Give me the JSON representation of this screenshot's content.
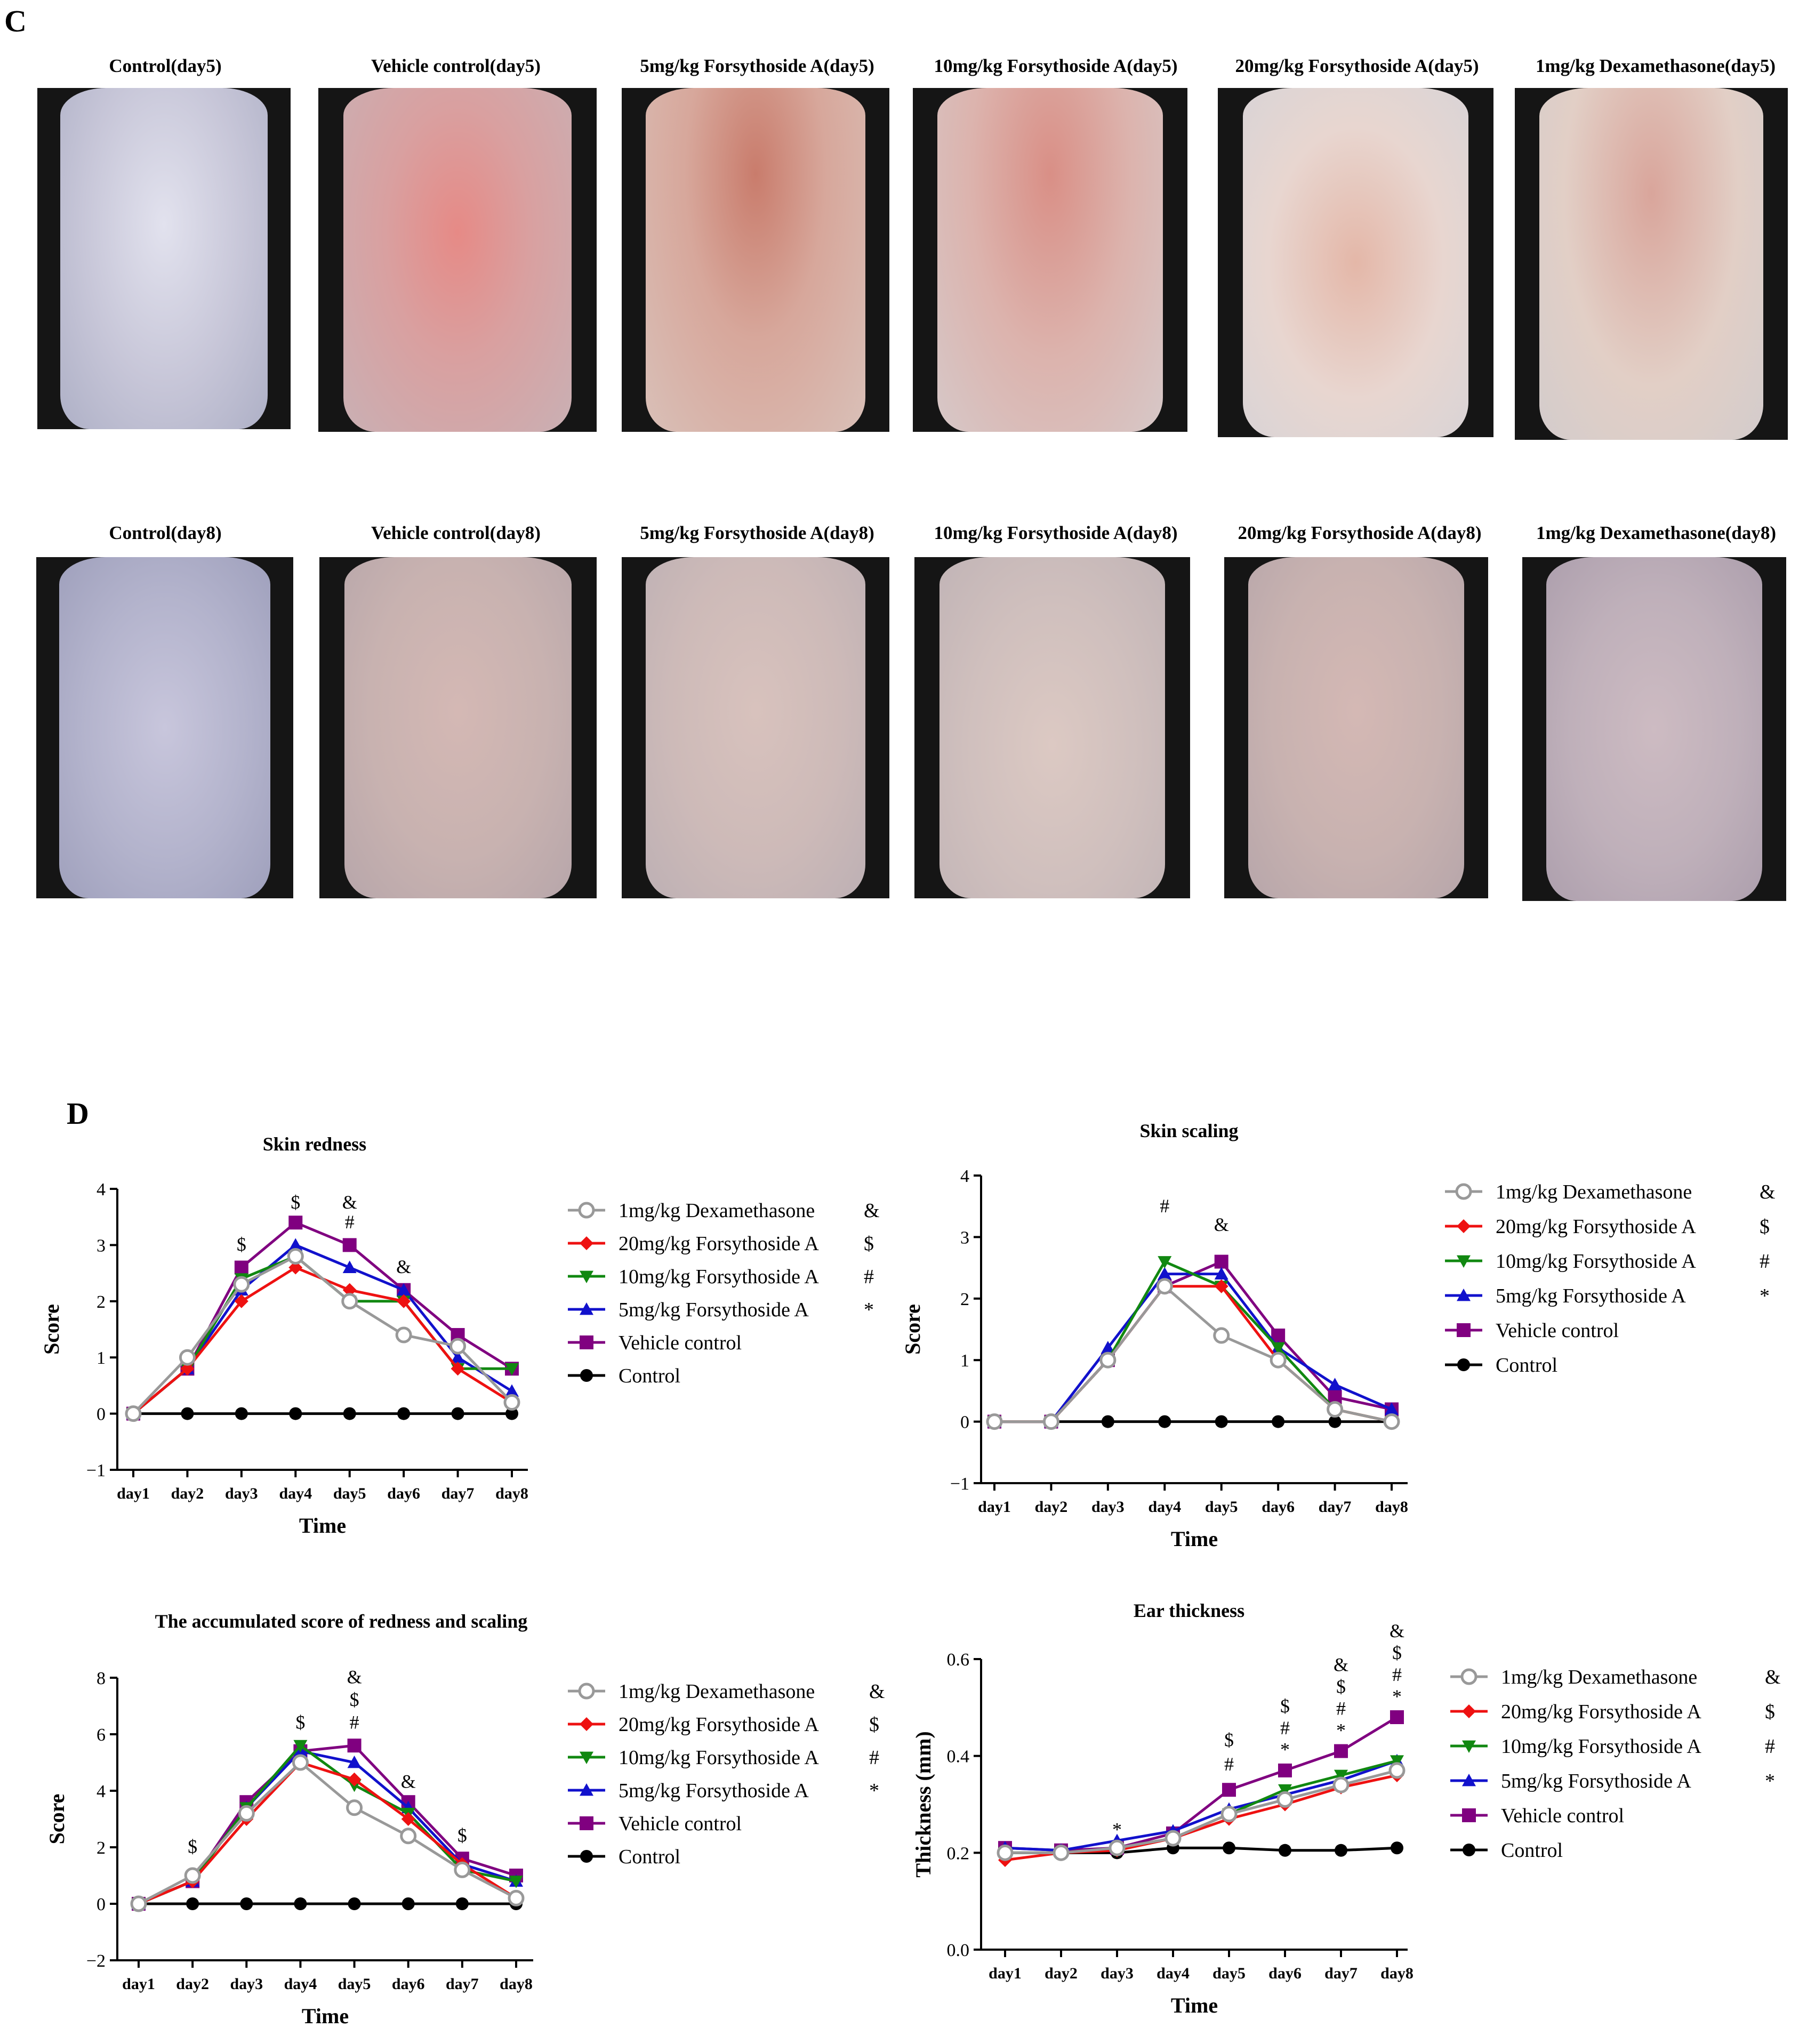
{
  "panels": {
    "c_label": "C",
    "d_label": "D"
  },
  "photos": {
    "row1": [
      {
        "title": "Control(day5)",
        "tone": "control"
      },
      {
        "title": "Vehicle control(day5)",
        "tone": "vehicle5"
      },
      {
        "title": "5mg/kg Forsythoside A(day5)",
        "tone": "f5d5"
      },
      {
        "title": "10mg/kg Forsythoside A(day5)",
        "tone": "f10d5"
      },
      {
        "title": "20mg/kg Forsythoside A(day5)",
        "tone": "f20d5"
      },
      {
        "title": "1mg/kg Dexamethasone(day5)",
        "tone": "dexd5"
      }
    ],
    "row2": [
      {
        "title": "Control(day8)",
        "tone": "control"
      },
      {
        "title": "Vehicle control(day8)",
        "tone": "day8b"
      },
      {
        "title": "5mg/kg Forsythoside A(day8)",
        "tone": "day8c"
      },
      {
        "title": "10mg/kg Forsythoside A(day8)",
        "tone": "day8d"
      },
      {
        "title": "20mg/kg Forsythoside A(day8)",
        "tone": "day8b"
      },
      {
        "title": "1mg/kg Dexamethasone(day8)",
        "tone": "day8a"
      }
    ]
  },
  "colors": {
    "dexamethasone": "#999999",
    "f20": "#ee1111",
    "f10": "#118811",
    "f5": "#1111cc",
    "vehicle": "#800080",
    "control": "#000000"
  },
  "chart_data": [
    {
      "type": "line",
      "title": "Skin redness",
      "xlabel": "Time",
      "ylabel": "Score",
      "x": [
        "day1",
        "day2",
        "day3",
        "day4",
        "day5",
        "day6",
        "day7",
        "day8"
      ],
      "ylim": [
        -1,
        4
      ],
      "yticks": [
        "−1",
        "0",
        "1",
        "2",
        "3",
        "4"
      ],
      "series": [
        {
          "name": "1mg/kg Dexamethasone",
          "symbol": "&",
          "marker": "circle-open",
          "values": [
            0,
            1.0,
            2.3,
            2.8,
            2.0,
            1.4,
            1.2,
            0.2
          ]
        },
        {
          "name": "20mg/kg Forsythoside A",
          "symbol": "$",
          "marker": "diamond",
          "values": [
            0,
            0.8,
            2.0,
            2.6,
            2.2,
            2.0,
            0.8,
            0.2
          ]
        },
        {
          "name": "10mg/kg Forsythoside A",
          "symbol": "#",
          "marker": "triangle-down",
          "values": [
            0,
            0.8,
            2.4,
            2.8,
            2.0,
            2.0,
            0.8,
            0.8
          ]
        },
        {
          "name": "5mg/kg Forsythoside A",
          "symbol": "*",
          "marker": "triangle-up",
          "values": [
            0,
            0.8,
            2.2,
            3.0,
            2.6,
            2.2,
            1.0,
            0.4
          ]
        },
        {
          "name": "Vehicle control",
          "symbol": "",
          "marker": "square",
          "values": [
            0,
            0.8,
            2.6,
            3.4,
            3.0,
            2.2,
            1.4,
            0.8
          ]
        },
        {
          "name": "Control",
          "symbol": "",
          "marker": "circle",
          "values": [
            0,
            0,
            0,
            0,
            0,
            0,
            0,
            0
          ]
        }
      ],
      "annotations": [
        {
          "x": "day3",
          "y": 2.9,
          "text": "$"
        },
        {
          "x": "day4",
          "y": 3.65,
          "text": "$"
        },
        {
          "x": "day5",
          "y": 3.3,
          "text": "#"
        },
        {
          "x": "day5",
          "y": 3.65,
          "text": "&"
        },
        {
          "x": "day6",
          "y": 2.5,
          "text": "&"
        }
      ]
    },
    {
      "type": "line",
      "title": "Skin scaling",
      "xlabel": "Time",
      "ylabel": "Score",
      "x": [
        "day1",
        "day2",
        "day3",
        "day4",
        "day5",
        "day6",
        "day7",
        "day8"
      ],
      "ylim": [
        -1,
        4
      ],
      "yticks": [
        "−1",
        "0",
        "1",
        "2",
        "3",
        "4"
      ],
      "series": [
        {
          "name": "1mg/kg Dexamethasone",
          "symbol": "&",
          "marker": "circle-open",
          "values": [
            0,
            0,
            1.0,
            2.2,
            1.4,
            1.0,
            0.2,
            0.0
          ]
        },
        {
          "name": "20mg/kg Forsythoside A",
          "symbol": "$",
          "marker": "diamond",
          "values": [
            0,
            0,
            1.0,
            2.2,
            2.2,
            1.0,
            0.2,
            0.0
          ]
        },
        {
          "name": "10mg/kg Forsythoside A",
          "symbol": "#",
          "marker": "triangle-down",
          "values": [
            0,
            0,
            1.0,
            2.6,
            2.2,
            1.2,
            0.2,
            0.0
          ]
        },
        {
          "name": "5mg/kg Forsythoside A",
          "symbol": "*",
          "marker": "triangle-up",
          "values": [
            0,
            0,
            1.2,
            2.4,
            2.4,
            1.2,
            0.6,
            0.2
          ]
        },
        {
          "name": "Vehicle control",
          "symbol": "",
          "marker": "square",
          "values": [
            0,
            0,
            1.0,
            2.2,
            2.6,
            1.4,
            0.4,
            0.2
          ]
        },
        {
          "name": "Control",
          "symbol": "",
          "marker": "circle",
          "values": [
            0,
            0,
            0,
            0,
            0,
            0,
            0,
            0
          ]
        }
      ],
      "annotations": [
        {
          "x": "day4",
          "y": 3.4,
          "text": "#"
        },
        {
          "x": "day5",
          "y": 3.1,
          "text": "&"
        }
      ]
    },
    {
      "type": "line",
      "title": "The accumulated score of redness and scaling",
      "xlabel": "Time",
      "ylabel": "Score",
      "x": [
        "day1",
        "day2",
        "day3",
        "day4",
        "day5",
        "day6",
        "day7",
        "day8"
      ],
      "ylim": [
        -2,
        8
      ],
      "yticks": [
        "−2",
        "0",
        "2",
        "4",
        "6",
        "8"
      ],
      "series": [
        {
          "name": "1mg/kg Dexamethasone",
          "symbol": "&",
          "marker": "circle-open",
          "values": [
            0,
            1.0,
            3.2,
            5.0,
            3.4,
            2.4,
            1.2,
            0.2
          ]
        },
        {
          "name": "20mg/kg Forsythoside A",
          "symbol": "$",
          "marker": "diamond",
          "values": [
            0,
            0.8,
            3.0,
            5.0,
            4.4,
            3.0,
            1.4,
            0.2
          ]
        },
        {
          "name": "10mg/kg Forsythoside A",
          "symbol": "#",
          "marker": "triangle-down",
          "values": [
            0,
            0.8,
            3.4,
            5.6,
            4.2,
            3.2,
            1.2,
            0.8
          ]
        },
        {
          "name": "5mg/kg Forsythoside A",
          "symbol": "*",
          "marker": "triangle-up",
          "values": [
            0,
            0.8,
            3.4,
            5.4,
            5.0,
            3.4,
            1.4,
            0.8
          ]
        },
        {
          "name": "Vehicle control",
          "symbol": "",
          "marker": "square",
          "values": [
            0,
            0.8,
            3.6,
            5.4,
            5.6,
            3.6,
            1.6,
            1.0
          ]
        },
        {
          "name": "Control",
          "symbol": "",
          "marker": "circle",
          "values": [
            0,
            0,
            0,
            0,
            0,
            0,
            0,
            0
          ]
        }
      ],
      "annotations": [
        {
          "x": "day2",
          "y": 1.8,
          "text": "$"
        },
        {
          "x": "day4",
          "y": 6.2,
          "text": "$"
        },
        {
          "x": "day5",
          "y": 6.2,
          "text": "#"
        },
        {
          "x": "day5",
          "y": 7.0,
          "text": "$"
        },
        {
          "x": "day5",
          "y": 7.8,
          "text": "&"
        },
        {
          "x": "day6",
          "y": 4.1,
          "text": "&"
        },
        {
          "x": "day7",
          "y": 2.2,
          "text": "$"
        }
      ]
    },
    {
      "type": "line",
      "title": "Ear thickness",
      "xlabel": "Time",
      "ylabel": "Thickness (mm)",
      "x": [
        "day1",
        "day2",
        "day3",
        "day4",
        "day5",
        "day6",
        "day7",
        "day8"
      ],
      "ylim": [
        0.0,
        0.6
      ],
      "yticks": [
        "0.0",
        "0.2",
        "0.4",
        "0.6"
      ],
      "series": [
        {
          "name": "1mg/kg Dexamethasone",
          "symbol": "&",
          "marker": "circle-open",
          "values": [
            0.2,
            0.2,
            0.21,
            0.23,
            0.28,
            0.31,
            0.34,
            0.37
          ]
        },
        {
          "name": "20mg/kg Forsythoside A",
          "symbol": "$",
          "marker": "diamond",
          "values": [
            0.185,
            0.2,
            0.205,
            0.23,
            0.27,
            0.3,
            0.335,
            0.36
          ]
        },
        {
          "name": "10mg/kg Forsythoside A",
          "symbol": "#",
          "marker": "triangle-down",
          "values": [
            0.2,
            0.2,
            0.21,
            0.23,
            0.28,
            0.33,
            0.36,
            0.39
          ]
        },
        {
          "name": "5mg/kg Forsythoside A",
          "symbol": "*",
          "marker": "triangle-up",
          "values": [
            0.21,
            0.205,
            0.225,
            0.245,
            0.29,
            0.32,
            0.35,
            0.39
          ]
        },
        {
          "name": "Vehicle control",
          "symbol": "",
          "marker": "square",
          "values": [
            0.21,
            0.205,
            0.21,
            0.24,
            0.33,
            0.37,
            0.41,
            0.48
          ]
        },
        {
          "name": "Control",
          "symbol": "",
          "marker": "circle",
          "values": [
            0.2,
            0.2,
            0.2,
            0.21,
            0.21,
            0.205,
            0.205,
            0.21
          ]
        }
      ],
      "annotations": [
        {
          "x": "day3",
          "y": 0.235,
          "text": "*"
        },
        {
          "x": "day5",
          "y": 0.37,
          "text": "#"
        },
        {
          "x": "day5",
          "y": 0.42,
          "text": "$"
        },
        {
          "x": "day6",
          "y": 0.4,
          "text": "*"
        },
        {
          "x": "day6",
          "y": 0.445,
          "text": "#"
        },
        {
          "x": "day6",
          "y": 0.49,
          "text": "$"
        },
        {
          "x": "day7",
          "y": 0.44,
          "text": "*"
        },
        {
          "x": "day7",
          "y": 0.485,
          "text": "#"
        },
        {
          "x": "day7",
          "y": 0.53,
          "text": "$"
        },
        {
          "x": "day7",
          "y": 0.575,
          "text": "&"
        },
        {
          "x": "day8",
          "y": 0.51,
          "text": "*"
        },
        {
          "x": "day8",
          "y": 0.555,
          "text": "#"
        },
        {
          "x": "day8",
          "y": 0.6,
          "text": "$"
        },
        {
          "x": "day8",
          "y": 0.645,
          "text": "&"
        }
      ]
    }
  ]
}
